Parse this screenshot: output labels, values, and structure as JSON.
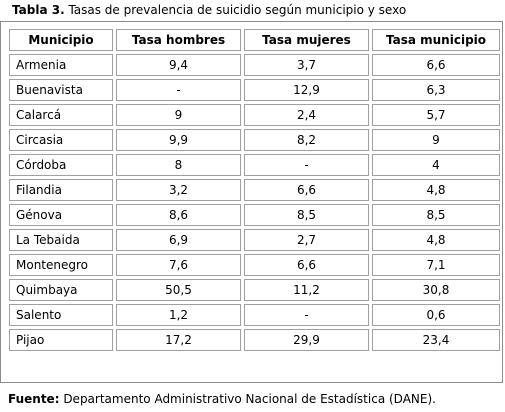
{
  "caption": {
    "label": "Tabla 3.",
    "text": " Tasas de prevalencia de suicidio según municipio y sexo"
  },
  "table": {
    "headers": [
      "Municipio",
      "Tasa hombres",
      "Tasa mujeres",
      "Tasa municipio"
    ],
    "rows": [
      [
        "Armenia",
        "9,4",
        "3,7",
        "6,6"
      ],
      [
        "Buenavista",
        "-",
        "12,9",
        "6,3"
      ],
      [
        "Calarcá",
        "9",
        "2,4",
        "5,7"
      ],
      [
        "Circasia",
        "9,9",
        "8,2",
        "9"
      ],
      [
        "Córdoba",
        "8",
        "-",
        "4"
      ],
      [
        "Filandia",
        "3,2",
        "6,6",
        "4,8"
      ],
      [
        "Génova",
        "8,6",
        "8,5",
        "8,5"
      ],
      [
        "La Tebaida",
        "6,9",
        "2,7",
        "4,8"
      ],
      [
        "Montenegro",
        "7,6",
        "6,6",
        "7,1"
      ],
      [
        "Quimbaya",
        "50,5",
        "11,2",
        "30,8"
      ],
      [
        "Salento",
        "1,2",
        "-",
        "0,6"
      ],
      [
        "Pijao",
        "17,2",
        "29,9",
        "23,4"
      ]
    ]
  },
  "source": {
    "label": "Fuente:",
    "text": " Departamento Administrativo Nacional de Estadística (DANE)."
  }
}
